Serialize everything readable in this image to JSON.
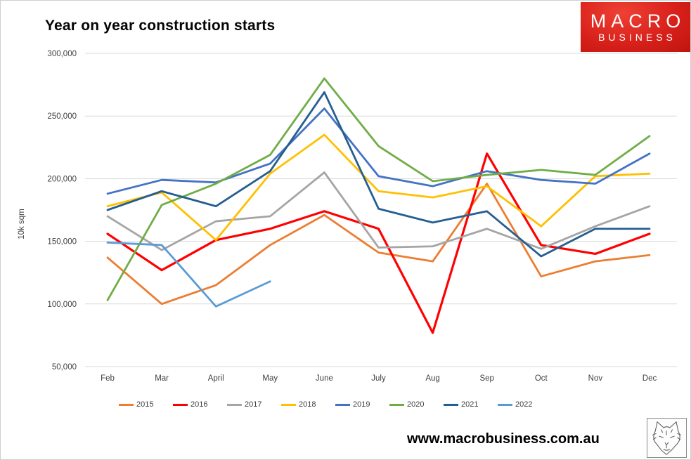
{
  "page": {
    "title": "Year on year construction starts",
    "footer_url": "www.macrobusiness.com.au"
  },
  "logo": {
    "line1": "MACRO",
    "line2": "BUSINESS",
    "bg_color": "#d8211a",
    "text_color": "#ffffff"
  },
  "chart_data": {
    "type": "line",
    "title": "Year on year construction starts",
    "xlabel": "",
    "ylabel": "10k sqm",
    "ylim": [
      50000,
      300000
    ],
    "grid": "horizontal",
    "gridline_color": "#d9d9d9",
    "tick_label_color": "#404040",
    "legend_position": "bottom",
    "categories": [
      "Feb",
      "Mar",
      "April",
      "May",
      "June",
      "July",
      "Aug",
      "Sep",
      "Oct",
      "Nov",
      "Dec"
    ],
    "y_ticks": [
      {
        "label": "300,000",
        "value": 300000
      },
      {
        "label": "250,000",
        "value": 250000
      },
      {
        "label": "200,000",
        "value": 200000
      },
      {
        "label": "150,000",
        "value": 150000
      },
      {
        "label": "100,000",
        "value": 100000
      },
      {
        "label": "50,000",
        "value": 50000
      }
    ],
    "series": [
      {
        "name": "2015",
        "color": "#ED7D31",
        "values": [
          137000,
          100000,
          115000,
          147000,
          171000,
          141000,
          134000,
          196000,
          122000,
          134000,
          139000
        ]
      },
      {
        "name": "2016",
        "color": "#FF0000",
        "values": [
          156000,
          127000,
          151000,
          160000,
          174000,
          160000,
          77000,
          220000,
          147000,
          140000,
          156000
        ]
      },
      {
        "name": "2017",
        "color": "#A5A5A5",
        "values": [
          170000,
          143000,
          166000,
          170000,
          205000,
          145000,
          146000,
          160000,
          144000,
          162000,
          178000
        ]
      },
      {
        "name": "2018",
        "color": "#FFC000",
        "values": [
          178000,
          189000,
          151000,
          204000,
          235000,
          190000,
          185000,
          194000,
          162000,
          202000,
          204000
        ]
      },
      {
        "name": "2019",
        "color": "#4472C4",
        "values": [
          188000,
          199000,
          197000,
          212000,
          256000,
          202000,
          194000,
          206000,
          199000,
          196000,
          220000
        ]
      },
      {
        "name": "2020",
        "color": "#70AD47",
        "values": [
          103000,
          179000,
          196000,
          219000,
          280000,
          226000,
          198000,
          203000,
          207000,
          203000,
          234000
        ]
      },
      {
        "name": "2021",
        "color": "#255E91",
        "values": [
          175000,
          190000,
          178000,
          206000,
          269000,
          176000,
          165000,
          174000,
          138000,
          160000,
          160000
        ]
      },
      {
        "name": "2022",
        "color": "#5B9BD5",
        "values": [
          149000,
          147000,
          98000,
          118000,
          null,
          null,
          null,
          null,
          null,
          null,
          null
        ]
      }
    ]
  }
}
